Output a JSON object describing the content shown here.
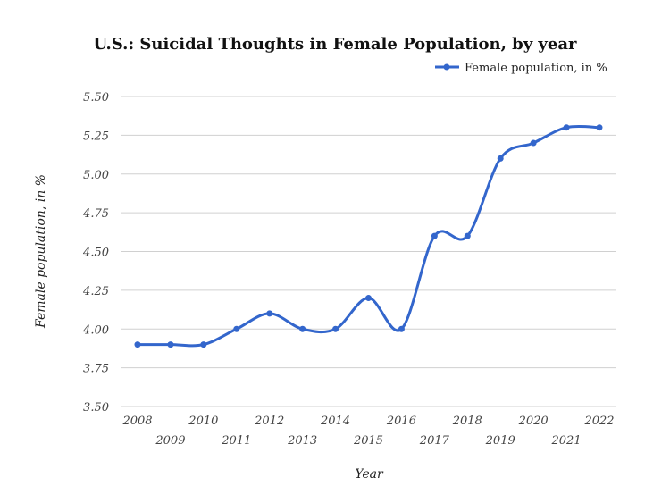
{
  "chart_data": {
    "type": "line",
    "title": "U.S.: Suicidal Thoughts in Female Population, by year",
    "xlabel": "Year",
    "ylabel": "Female population, in %",
    "legend": {
      "position": "top-right",
      "entries": [
        "Female population, in %"
      ]
    },
    "grid": true,
    "smooth": true,
    "ylim": [
      3.5,
      5.5
    ],
    "yticks": [
      "3.50",
      "3.75",
      "4.00",
      "4.25",
      "4.50",
      "4.75",
      "5.00",
      "5.25",
      "5.50"
    ],
    "x": [
      "2008",
      "2009",
      "2010",
      "2011",
      "2012",
      "2013",
      "2014",
      "2015",
      "2016",
      "2017",
      "2018",
      "2019",
      "2020",
      "2021",
      "2022"
    ],
    "series": [
      {
        "name": "Female population, in %",
        "color": "#3366cc",
        "values": [
          3.9,
          3.9,
          3.9,
          4.0,
          4.1,
          4.0,
          4.0,
          4.2,
          4.0,
          4.6,
          4.6,
          5.1,
          5.2,
          5.3,
          5.3
        ]
      }
    ]
  }
}
